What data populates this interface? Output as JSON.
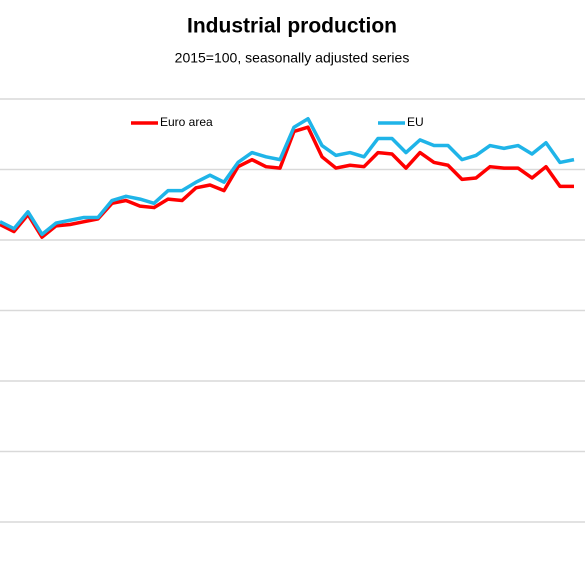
{
  "chart_data": {
    "type": "line",
    "title": "Industrial production",
    "subtitle": "2015=100, seasonally adjusted series",
    "categories": [
      null,
      null,
      null,
      null,
      null,
      null,
      null,
      null,
      null,
      null,
      null,
      null,
      null,
      null,
      null,
      null,
      null,
      null,
      null,
      null,
      null,
      null,
      null,
      null,
      null,
      null,
      null,
      null,
      null,
      null,
      null,
      null,
      null,
      null,
      null,
      null,
      null,
      null,
      null,
      null,
      null,
      null
    ],
    "series": [
      {
        "name": "Euro area",
        "color": "#ff0000",
        "values": [
          101.1,
          100.6,
          101.8,
          100.2,
          101.0,
          101.1,
          101.3,
          101.5,
          102.6,
          102.8,
          102.4,
          102.3,
          102.9,
          102.8,
          103.7,
          103.9,
          103.5,
          105.2,
          105.7,
          105.2,
          105.1,
          107.7,
          108.0,
          105.9,
          105.1,
          105.3,
          105.2,
          106.2,
          106.1,
          105.1,
          106.2,
          105.5,
          105.3,
          104.3,
          104.4,
          105.2,
          105.1,
          105.1,
          104.4,
          105.2,
          103.8,
          103.8
        ]
      },
      {
        "name": "EU",
        "color": "#1fb4e8",
        "values": [
          101.3,
          100.8,
          102.0,
          100.4,
          101.2,
          101.4,
          101.6,
          101.6,
          102.8,
          103.1,
          102.9,
          102.6,
          103.5,
          103.5,
          104.1,
          104.6,
          104.1,
          105.5,
          106.2,
          105.9,
          105.7,
          108.0,
          108.6,
          106.7,
          106.0,
          106.2,
          105.9,
          107.2,
          107.2,
          106.2,
          107.1,
          106.7,
          106.7,
          105.7,
          106.0,
          106.7,
          106.5,
          106.7,
          106.1,
          106.9,
          105.5,
          105.7
        ]
      }
    ],
    "ylim": [
      80,
      110
    ],
    "yticks": [
      80,
      85,
      90,
      95,
      100,
      105,
      110
    ],
    "grid": true
  }
}
